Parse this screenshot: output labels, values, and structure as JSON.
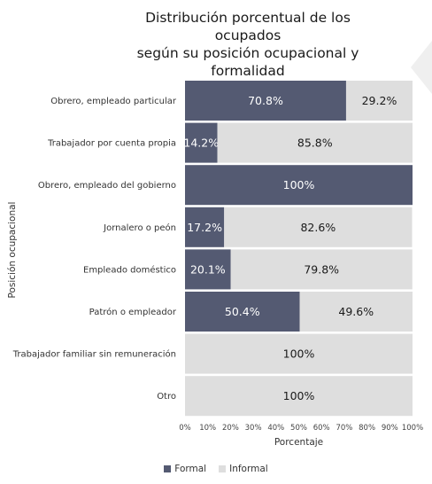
{
  "chart_data": {
    "type": "bar",
    "orientation": "horizontal",
    "stacked": true,
    "title": "Distribución porcentual de los ocupados según su posición ocupacional y formalidad",
    "title_lines": [
      "Distribución porcentual de los ocupados",
      "según su posición ocupacional y",
      "formalidad"
    ],
    "xlabel": "Porcentaje",
    "ylabel": "Posición ocupacional",
    "xlim": [
      0,
      100
    ],
    "x_ticks": [
      "0%",
      "10%",
      "20%",
      "30%",
      "40%",
      "50%",
      "60%",
      "70%",
      "80%",
      "90%",
      "100%"
    ],
    "categories": [
      "Obrero, empleado particular",
      "Trabajador por cuenta propia",
      "Obrero, empleado del gobierno",
      "Jornalero o peón",
      "Empleado doméstico",
      "Patrón o empleador",
      "Trabajador familiar sin remuneración",
      "Otro"
    ],
    "series": [
      {
        "name": "Formal",
        "color": "#545a72",
        "values": [
          70.8,
          14.2,
          100,
          17.2,
          20.1,
          50.4,
          0,
          0
        ],
        "labels": [
          "70.8%",
          "14.2%",
          "100%",
          "17.2%",
          "20.1%",
          "50.4%",
          "",
          ""
        ]
      },
      {
        "name": "Informal",
        "color": "#dedede",
        "values": [
          29.2,
          85.8,
          0,
          82.6,
          79.8,
          49.6,
          100,
          100
        ],
        "labels": [
          "29.2%",
          "85.8%",
          "",
          "82.6%",
          "79.8%",
          "49.6%",
          "100%",
          "100%"
        ]
      }
    ],
    "legend_position": "bottom",
    "grid": false
  }
}
